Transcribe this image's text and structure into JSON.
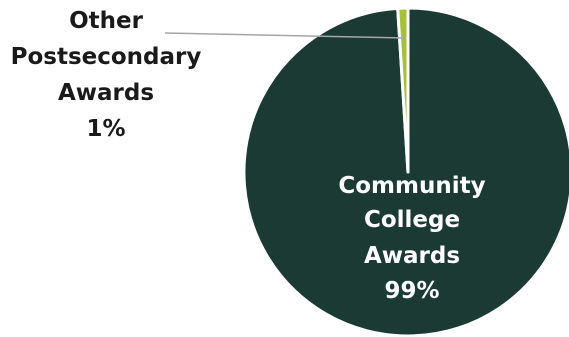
{
  "chart_data": {
    "type": "pie",
    "title": "",
    "slices": [
      {
        "label_lines": [
          "Community",
          "College",
          "Awards"
        ],
        "value": 99,
        "value_label": "99%",
        "color": "#1b3a33"
      },
      {
        "label_lines": [
          "Other",
          "Postsecondary",
          "Awards"
        ],
        "value": 1,
        "value_label": "1%",
        "color": "#a4c13a"
      }
    ],
    "start_angle_deg": 0,
    "direction": "clockwise",
    "separator_color": "#ffffff",
    "leader_line_color": "#a6a6a6",
    "legend": "none"
  }
}
